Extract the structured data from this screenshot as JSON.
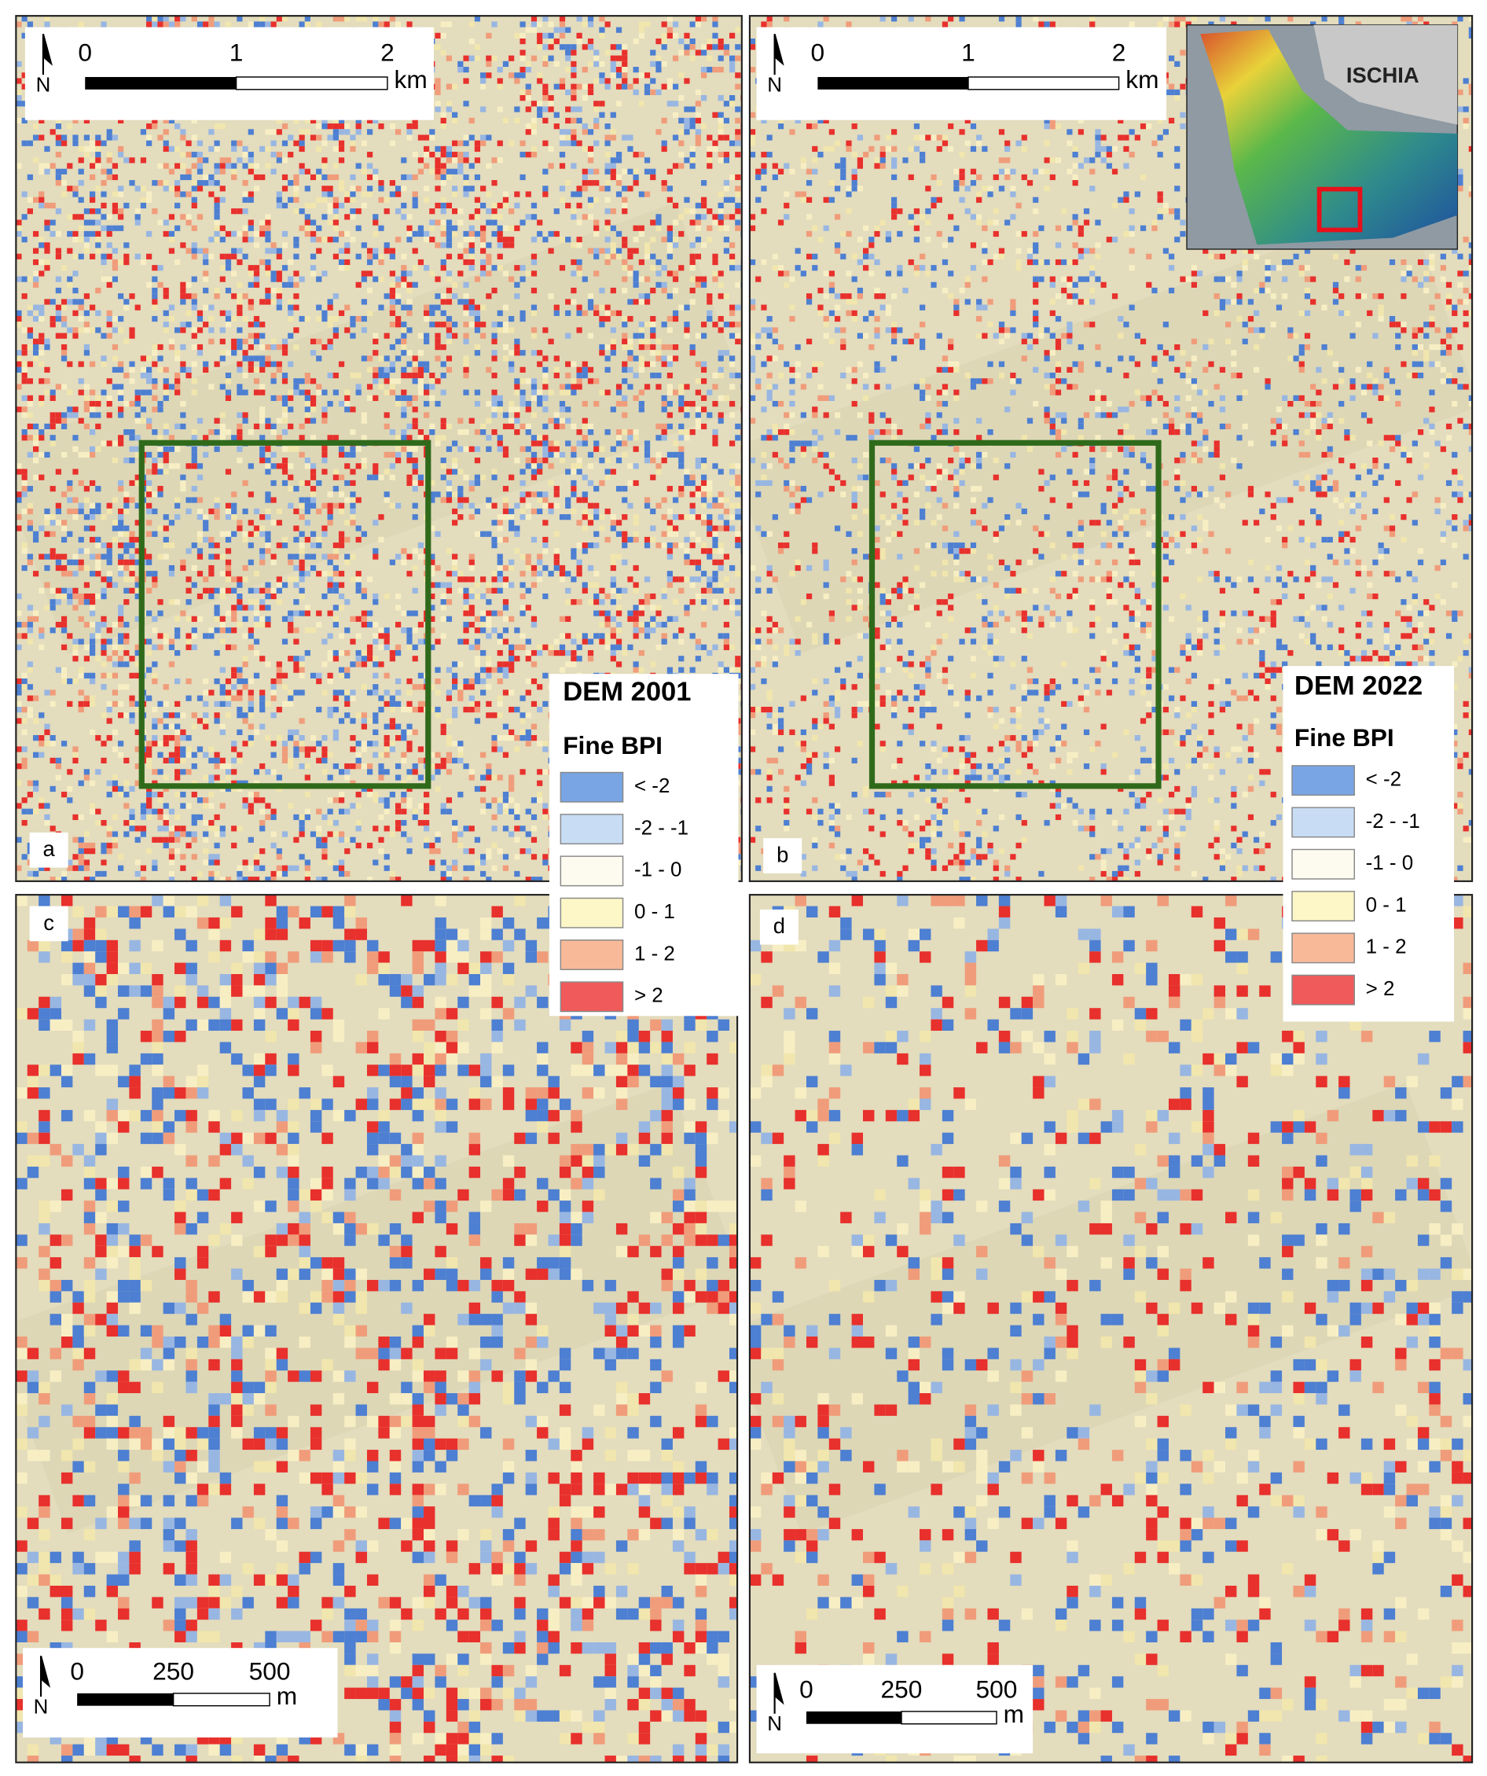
{
  "north_label": "N",
  "inset": {
    "label": "ISCHIA"
  },
  "panels": [
    {
      "label": "a",
      "scale_bar": {
        "ticks": [
          "0",
          "1",
          "2"
        ],
        "unit": "km"
      },
      "legend": {
        "title": "DEM 2001",
        "subtitle": "Fine BPI",
        "classes": [
          {
            "label": "< -2",
            "color": "#79a5e4"
          },
          {
            "label": "-2  -  -1",
            "color": "#c8dcf3"
          },
          {
            "label": "-1 - 0",
            "color": "#fdfbef"
          },
          {
            "label": "0 - 1",
            "color": "#fdf6c6"
          },
          {
            "label": "1 - 2",
            "color": "#f8b998"
          },
          {
            "label": "> 2",
            "color": "#f05a5a"
          }
        ]
      }
    },
    {
      "label": "b",
      "scale_bar": {
        "ticks": [
          "0",
          "1",
          "2"
        ],
        "unit": "km"
      },
      "legend": {
        "title": "DEM 2022",
        "subtitle": "Fine BPI",
        "classes": [
          {
            "label": "< -2",
            "color": "#79a5e4"
          },
          {
            "label": "-2  -  -1",
            "color": "#c8dcf3"
          },
          {
            "label": "-1 - 0",
            "color": "#fdfbef"
          },
          {
            "label": "0 - 1",
            "color": "#fdf6c6"
          },
          {
            "label": "1 - 2",
            "color": "#f8b998"
          },
          {
            "label": "> 2",
            "color": "#f05a5a"
          }
        ]
      }
    },
    {
      "label": "c",
      "scale_bar": {
        "ticks": [
          "0",
          "250",
          "500"
        ],
        "unit": "m"
      }
    },
    {
      "label": "d",
      "scale_bar": {
        "ticks": [
          "0",
          "250",
          "500"
        ],
        "unit": "m"
      }
    }
  ]
}
